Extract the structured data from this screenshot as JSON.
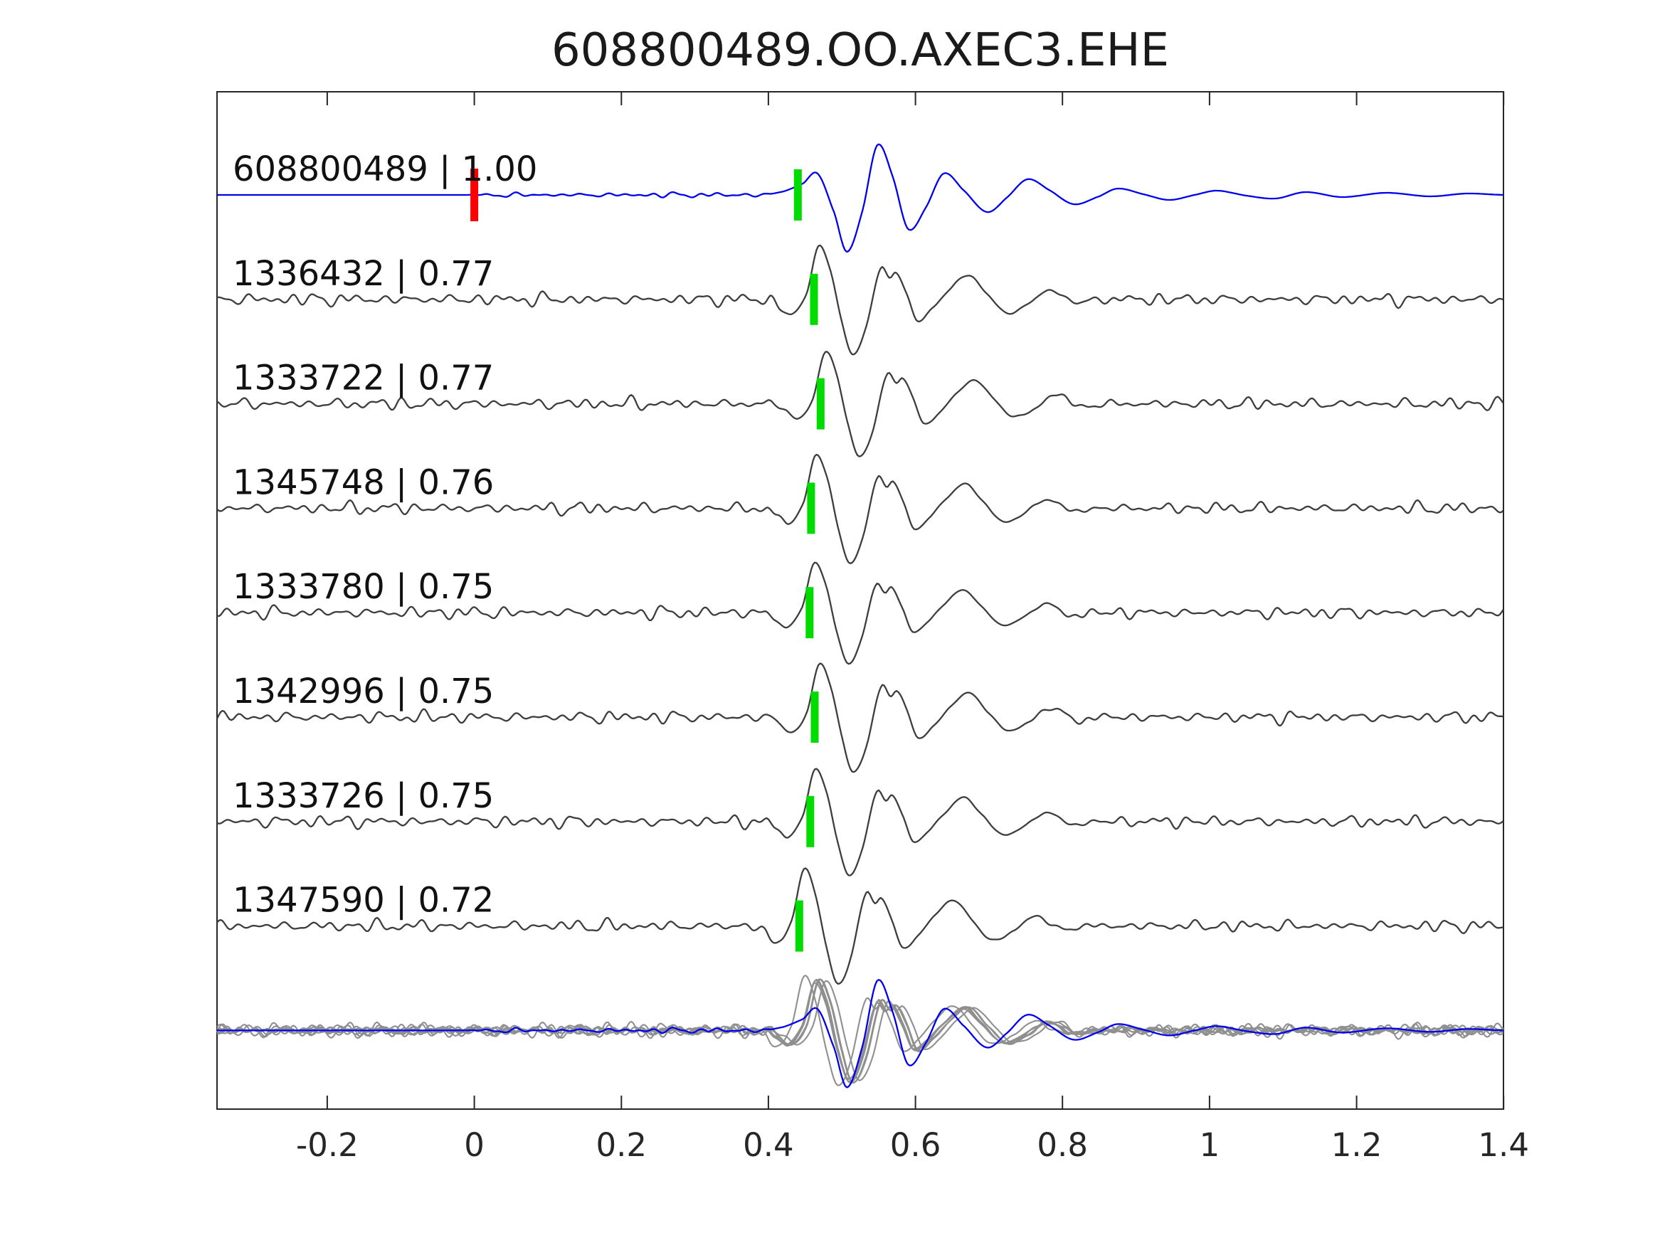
{
  "chart_data": {
    "type": "line",
    "title": "608800489.OO.AXEC3.EHE",
    "xlabel": "",
    "ylabel": "",
    "xlim": [
      -0.35,
      1.4
    ],
    "grid": false,
    "legend": "none",
    "x_ticks": {
      "values": [
        -0.2,
        0,
        0.2,
        0.4,
        0.6,
        0.8,
        1,
        1.2,
        1.4
      ],
      "labels": [
        "-0.2",
        "0",
        "0.2",
        "0.4",
        "0.6",
        "0.8",
        "1",
        "1.2",
        "1.4"
      ]
    },
    "colors": {
      "reference": "#0000EE",
      "match": "#3d3d3d",
      "overlay_match": "#8f8f8f",
      "pick_marker": "#00DB00",
      "zero_marker": "#FF0000",
      "axis": "#262626",
      "text": "#111111"
    },
    "reference_trace": {
      "id": "608800489",
      "correlation": "1.00",
      "label": "608800489 | 1.00",
      "zero_marker_time": 0.0,
      "pick_time": 0.44,
      "noise_amp": 3.2,
      "seed": 2,
      "noise_envelope": [
        [
          -0.35,
          0
        ],
        [
          -0.01,
          0
        ],
        [
          0.03,
          1
        ],
        [
          0.4,
          1
        ],
        [
          0.43,
          0
        ],
        [
          1.4,
          0
        ]
      ],
      "points": [
        [
          0.395,
          0
        ],
        [
          0.42,
          5
        ],
        [
          0.447,
          16
        ],
        [
          0.467,
          30
        ],
        [
          0.49,
          -26
        ],
        [
          0.507,
          -80
        ],
        [
          0.528,
          -22
        ],
        [
          0.548,
          70
        ],
        [
          0.569,
          26
        ],
        [
          0.59,
          -48
        ],
        [
          0.614,
          -18
        ],
        [
          0.638,
          30
        ],
        [
          0.664,
          8
        ],
        [
          0.697,
          -24
        ],
        [
          0.724,
          -4
        ],
        [
          0.752,
          22
        ],
        [
          0.78,
          8
        ],
        [
          0.815,
          -13
        ],
        [
          0.85,
          -2
        ],
        [
          0.875,
          9
        ],
        [
          0.91,
          1
        ],
        [
          0.945,
          -7
        ],
        [
          0.98,
          0
        ],
        [
          1.01,
          6
        ],
        [
          1.05,
          -1
        ],
        [
          1.09,
          -5
        ],
        [
          1.13,
          4
        ],
        [
          1.18,
          -3
        ],
        [
          1.24,
          3
        ],
        [
          1.3,
          -2
        ],
        [
          1.35,
          2
        ],
        [
          1.4,
          0
        ]
      ]
    },
    "matched_traces": [
      {
        "id": "1336432",
        "correlation": "0.77",
        "label": "1336432 | 0.77",
        "pick_time": 0.462,
        "seed": 7,
        "amp_scale": 1.0
      },
      {
        "id": "1333722",
        "correlation": "0.77",
        "label": "1333722 | 0.77",
        "pick_time": 0.471,
        "seed": 11,
        "amp_scale": 0.97
      },
      {
        "id": "1345748",
        "correlation": "0.76",
        "label": "1345748 | 0.76",
        "pick_time": 0.458,
        "seed": 19,
        "amp_scale": 1.0
      },
      {
        "id": "1333780",
        "correlation": "0.75",
        "label": "1333780 | 0.75",
        "pick_time": 0.456,
        "seed": 23,
        "amp_scale": 0.93
      },
      {
        "id": "1342996",
        "correlation": "0.75",
        "label": "1342996 | 0.75",
        "pick_time": 0.463,
        "seed": 31,
        "amp_scale": 1.0
      },
      {
        "id": "1333726",
        "correlation": "0.75",
        "label": "1333726 | 0.75",
        "pick_time": 0.457,
        "seed": 41,
        "amp_scale": 0.98
      },
      {
        "id": "1347590",
        "correlation": "0.72",
        "label": "1347590 | 0.72",
        "pick_time": 0.442,
        "seed": 53,
        "amp_scale": 1.06
      }
    ],
    "match_template_points": [
      [
        -0.06,
        0
      ],
      [
        -0.048,
        -10
      ],
      [
        -0.03,
        -21
      ],
      [
        -0.01,
        8
      ],
      [
        0.006,
        75
      ],
      [
        0.022,
        42
      ],
      [
        0.037,
        -28
      ],
      [
        0.052,
        -77
      ],
      [
        0.07,
        -42
      ],
      [
        0.09,
        42
      ],
      [
        0.103,
        30
      ],
      [
        0.112,
        37
      ],
      [
        0.126,
        8
      ],
      [
        0.14,
        -29
      ],
      [
        0.16,
        -14
      ],
      [
        0.185,
        15
      ],
      [
        0.21,
        34
      ],
      [
        0.235,
        8
      ],
      [
        0.262,
        -19
      ],
      [
        0.292,
        -6
      ],
      [
        0.32,
        13
      ],
      [
        0.355,
        -4
      ],
      [
        0.385,
        0
      ]
    ],
    "match_noise_amp": 8,
    "match_noise_envelope": [
      [
        -0.35,
        1
      ],
      [
        0.4,
        1
      ],
      [
        0.43,
        0.12
      ],
      [
        0.75,
        0.15
      ],
      [
        0.88,
        0.9
      ],
      [
        1.4,
        1
      ]
    ],
    "overlay": {
      "description": "all matched traces plus reference superimposed on bottom row",
      "amp_scale": 0.95
    }
  }
}
